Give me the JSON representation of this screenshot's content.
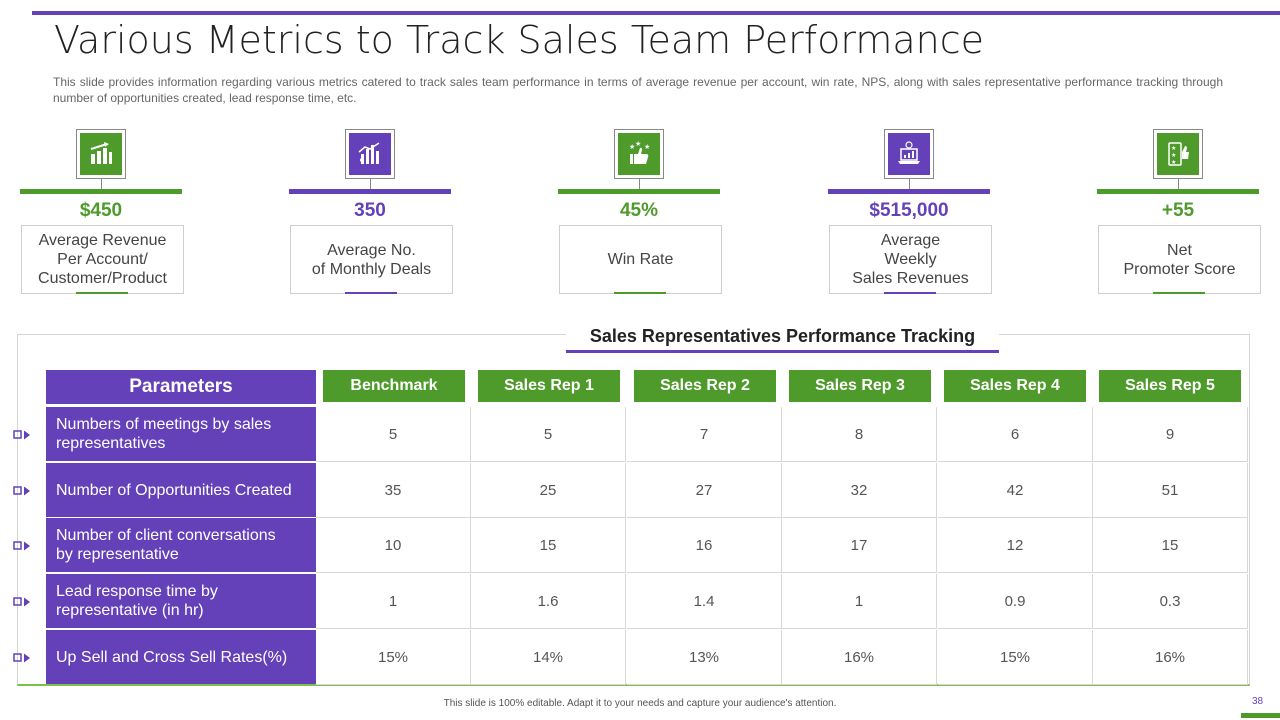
{
  "title": "Various Metrics to Track Sales Team Performance",
  "subtitle": "This slide provides information regarding various metrics catered to track sales team performance in terms of average revenue per account, win rate, NPS, along with sales representative performance tracking through number of opportunities created, lead response time, etc.",
  "metrics": [
    {
      "value": "$450",
      "label_lines": [
        "Average Revenue",
        "Per Account/",
        "Customer/Product"
      ],
      "icon": "growth-chart-icon",
      "color": "#4e9a2a"
    },
    {
      "value": "350",
      "label_lines": [
        "Average No.",
        "of Monthly  Deals"
      ],
      "icon": "deals-chart-icon",
      "color": "#6441b9"
    },
    {
      "value": "45%",
      "label_lines": [
        "Win Rate"
      ],
      "icon": "thumbs-up-stars-icon",
      "color": "#4e9a2a"
    },
    {
      "value": "$515,000",
      "label_lines": [
        "Average",
        "Weekly",
        "Sales Revenues"
      ],
      "icon": "laptop-revenue-icon",
      "color": "#6441b9"
    },
    {
      "value": "+55",
      "label_lines": [
        "Net",
        "Promoter Score"
      ],
      "icon": "promoter-rating-icon",
      "color": "#4e9a2a"
    }
  ],
  "table": {
    "title": "Sales Representatives Performance Tracking",
    "param_header": "Parameters",
    "columns": [
      "Benchmark",
      "Sales Rep 1",
      "Sales Rep 2",
      "Sales Rep 3",
      "Sales Rep 4",
      "Sales Rep 5"
    ],
    "rows": [
      {
        "lines": [
          "Numbers of meetings by sales",
          "representatives"
        ],
        "values": [
          "5",
          "5",
          "7",
          "8",
          "6",
          "9"
        ]
      },
      {
        "lines": [
          "Number of Opportunities Created"
        ],
        "values": [
          "35",
          "25",
          "27",
          "32",
          "42",
          "51"
        ]
      },
      {
        "lines": [
          "Number of client conversations",
          "by representative"
        ],
        "values": [
          "10",
          "15",
          "16",
          "17",
          "12",
          "15"
        ]
      },
      {
        "lines": [
          "Lead response time by",
          "representative (in hr)"
        ],
        "values": [
          "1",
          "1.6",
          "1.4",
          "1",
          "0.9",
          "0.3"
        ]
      },
      {
        "lines": [
          "Up Sell and Cross Sell Rates(%)"
        ],
        "values": [
          "15%",
          "14%",
          "13%",
          "16%",
          "15%",
          "16%"
        ]
      }
    ]
  },
  "footer": "This slide is 100% editable. Adapt it to your needs and capture your audience's attention.",
  "page_number": "38",
  "colors": {
    "purple": "#6441b9",
    "green": "#4e9a2a",
    "light_green": "#7cc04a"
  }
}
